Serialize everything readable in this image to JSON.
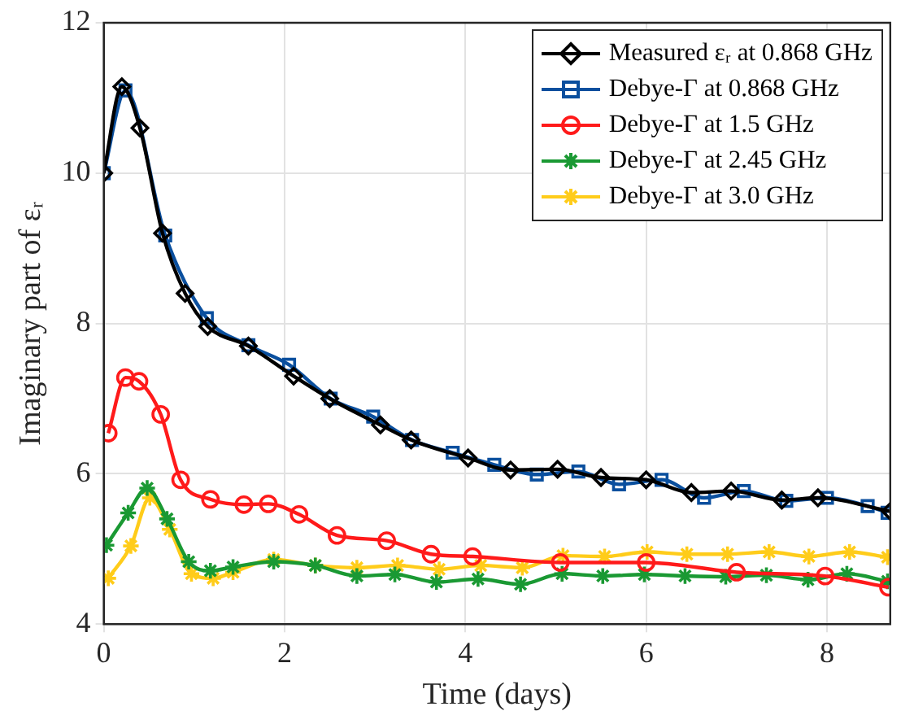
{
  "chart_data": {
    "type": "line",
    "xlabel": "Time (days)",
    "ylabel": "Imaginary part of εᵣ",
    "xlim": [
      0,
      8.7
    ],
    "xticks": [
      0,
      2,
      4,
      6,
      8
    ],
    "ylim": [
      4,
      12
    ],
    "yticks": [
      4,
      6,
      8,
      10,
      12
    ],
    "grid": true,
    "legend": "top right",
    "line_style": "solid",
    "series": [
      {
        "name": "Measured εᵣ at 0.868 GHz",
        "color": "#000000",
        "marker": "diamond",
        "x": [
          0,
          0.2,
          0.4,
          0.65,
          0.9,
          1.15,
          1.6,
          2.1,
          2.5,
          3.06,
          3.4,
          4.03,
          4.5,
          5.02,
          5.5,
          6.0,
          6.5,
          6.94,
          7.5,
          7.9,
          8.7
        ],
        "values": [
          10,
          11.15,
          10.6,
          9.2,
          8.4,
          7.96,
          7.7,
          7.3,
          7.0,
          6.65,
          6.45,
          6.21,
          6.05,
          6.06,
          5.95,
          5.92,
          5.75,
          5.77,
          5.65,
          5.68,
          5.5
        ]
      },
      {
        "name": "Debye-Γ at 0.868 GHz",
        "color": "#0a4f9e",
        "marker": "square",
        "x": [
          0,
          0.24,
          0.68,
          1.14,
          1.6,
          2.05,
          2.51,
          2.98,
          3.41,
          3.86,
          4.32,
          4.79,
          5.25,
          5.7,
          6.17,
          6.64,
          7.08,
          7.55,
          8.0,
          8.45,
          8.67
        ],
        "values": [
          10,
          11.1,
          9.17,
          8.07,
          7.71,
          7.45,
          7.0,
          6.76,
          6.45,
          6.28,
          6.12,
          5.99,
          6.03,
          5.86,
          5.92,
          5.68,
          5.77,
          5.64,
          5.68,
          5.57,
          5.48
        ]
      },
      {
        "name": "Debye-Γ at 1.5 GHz",
        "color": "#ff1a1a",
        "marker": "circle",
        "x": [
          0.05,
          0.24,
          0.39,
          0.63,
          0.85,
          1.18,
          1.55,
          1.82,
          2.16,
          2.58,
          3.13,
          3.62,
          4.08,
          5.05,
          6.0,
          7.0,
          7.98,
          8.68
        ],
        "values": [
          6.54,
          7.28,
          7.23,
          6.79,
          5.92,
          5.66,
          5.59,
          5.6,
          5.46,
          5.18,
          5.11,
          4.93,
          4.9,
          4.82,
          4.82,
          4.69,
          4.64,
          4.49
        ]
      },
      {
        "name": "Debye-Γ at 2.45 GHz",
        "color": "#1a9933",
        "marker": "cross",
        "x": [
          0.03,
          0.27,
          0.48,
          0.7,
          0.94,
          1.18,
          1.43,
          1.88,
          2.34,
          2.8,
          3.22,
          3.68,
          4.14,
          4.61,
          5.07,
          5.52,
          5.98,
          6.43,
          6.88,
          7.33,
          7.79,
          8.22,
          8.67
        ],
        "values": [
          5.05,
          5.48,
          5.81,
          5.4,
          4.83,
          4.71,
          4.76,
          4.83,
          4.78,
          4.64,
          4.66,
          4.56,
          4.6,
          4.53,
          4.67,
          4.64,
          4.66,
          4.64,
          4.63,
          4.65,
          4.59,
          4.67,
          4.57
        ]
      },
      {
        "name": "Debye-Γ at 3.0 GHz",
        "color": "#ffcc1a",
        "marker": "cross",
        "x": [
          0.05,
          0.3,
          0.51,
          0.73,
          0.97,
          1.21,
          1.43,
          1.88,
          2.34,
          2.8,
          3.25,
          3.71,
          4.17,
          4.63,
          5.08,
          5.54,
          6.01,
          6.45,
          6.9,
          7.36,
          7.8,
          8.25,
          8.67
        ],
        "values": [
          4.61,
          5.04,
          5.68,
          5.26,
          4.67,
          4.61,
          4.69,
          4.86,
          4.78,
          4.75,
          4.78,
          4.73,
          4.78,
          4.75,
          4.91,
          4.9,
          4.96,
          4.93,
          4.93,
          4.96,
          4.9,
          4.96,
          4.89
        ]
      }
    ]
  }
}
